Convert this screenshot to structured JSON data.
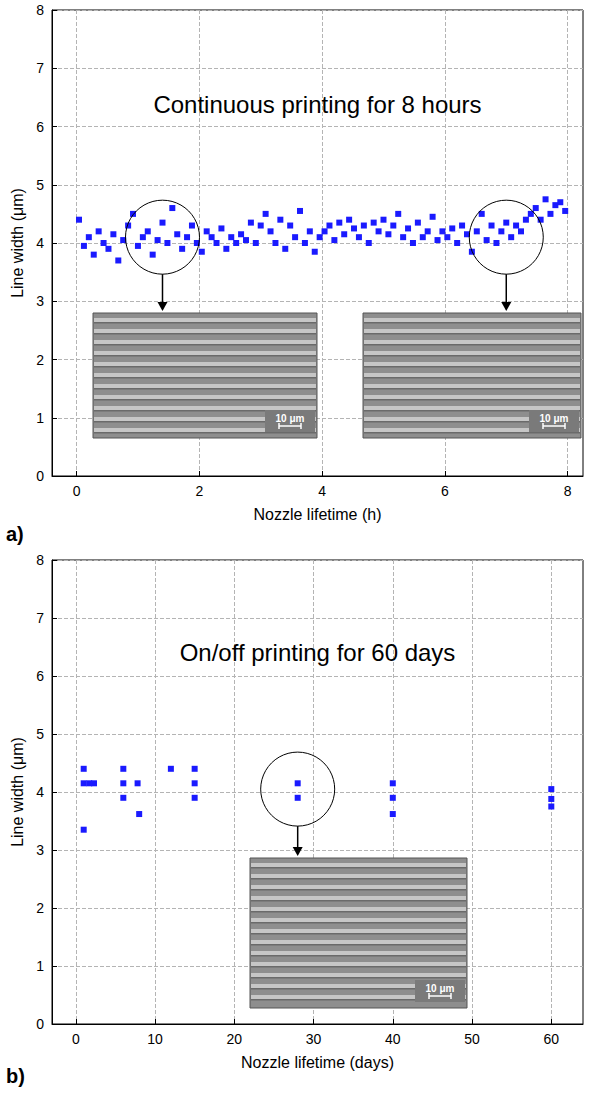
{
  "chart_data": [
    {
      "type": "scatter",
      "panel": "a)",
      "annotation": "Continuous printing for 8 hours",
      "x_label": "Nozzle lifetime (h)",
      "y_label": "Line width (μm)",
      "color": "#1a1aff",
      "marker": "square",
      "grid": true,
      "xlim": [
        -0.4,
        8.25
      ],
      "ylim": [
        0,
        8
      ],
      "xticks": [
        0,
        2,
        4,
        6,
        8
      ],
      "yticks": [
        0,
        1,
        2,
        3,
        4,
        5,
        6,
        7,
        8
      ],
      "x": [
        0.04,
        0.12,
        0.2,
        0.28,
        0.36,
        0.44,
        0.52,
        0.6,
        0.68,
        0.76,
        0.84,
        0.92,
        1,
        1.08,
        1.16,
        1.24,
        1.32,
        1.4,
        1.48,
        1.56,
        1.64,
        1.72,
        1.8,
        1.88,
        1.96,
        2.04,
        2.12,
        2.2,
        2.28,
        2.36,
        2.44,
        2.52,
        2.6,
        2.68,
        2.76,
        2.84,
        2.92,
        3,
        3.08,
        3.16,
        3.24,
        3.32,
        3.4,
        3.48,
        3.56,
        3.64,
        3.72,
        3.8,
        3.88,
        3.96,
        4.04,
        4.12,
        4.2,
        4.28,
        4.36,
        4.44,
        4.52,
        4.6,
        4.68,
        4.76,
        4.84,
        4.92,
        5,
        5.08,
        5.16,
        5.24,
        5.32,
        5.4,
        5.48,
        5.56,
        5.64,
        5.72,
        5.8,
        5.88,
        5.96,
        6.04,
        6.12,
        6.2,
        6.28,
        6.36,
        6.44,
        6.52,
        6.6,
        6.68,
        6.76,
        6.84,
        6.92,
        7,
        7.08,
        7.16,
        7.24,
        7.32,
        7.4,
        7.48,
        7.56,
        7.64,
        7.72,
        7.8,
        7.88,
        7.96
      ],
      "values": [
        4.4,
        3.95,
        4.1,
        3.8,
        4.2,
        4.0,
        3.9,
        4.15,
        3.7,
        4.05,
        4.3,
        4.5,
        3.95,
        4.1,
        4.2,
        3.8,
        4.05,
        4.35,
        4.0,
        4.6,
        4.15,
        3.9,
        4.1,
        4.3,
        4.0,
        3.85,
        4.2,
        4.1,
        4.0,
        4.25,
        3.9,
        4.1,
        4.0,
        4.15,
        4.05,
        4.35,
        4.0,
        4.3,
        4.5,
        4.2,
        4.0,
        4.4,
        3.9,
        4.3,
        4.1,
        4.55,
        4.0,
        4.2,
        3.85,
        4.1,
        4.2,
        4.3,
        4.05,
        4.35,
        4.15,
        4.4,
        4.25,
        4.1,
        4.3,
        4.0,
        4.35,
        4.2,
        4.4,
        4.15,
        4.3,
        4.5,
        4.1,
        4.25,
        4.0,
        4.35,
        4.1,
        4.2,
        4.45,
        4.05,
        4.2,
        4.1,
        4.25,
        4.0,
        4.3,
        4.15,
        3.85,
        4.2,
        4.5,
        4.05,
        4.3,
        4.0,
        4.2,
        4.35,
        4.1,
        4.3,
        4.2,
        4.4,
        4.5,
        4.6,
        4.4,
        4.75,
        4.5,
        4.65,
        4.7,
        4.55
      ],
      "insets": [
        {
          "x": 1.4,
          "y": 4.1,
          "scale_bar": "10 μm"
        },
        {
          "x": 7.0,
          "y": 4.1,
          "scale_bar": "10 μm"
        }
      ]
    },
    {
      "type": "scatter",
      "panel": "b)",
      "annotation": "On/off printing for 60 days",
      "x_label": "Nozzle lifetime (days)",
      "y_label": "Line width (μm)",
      "color": "#1a1aff",
      "marker": "square",
      "grid": true,
      "xlim": [
        -3,
        64
      ],
      "ylim": [
        0,
        8
      ],
      "xticks": [
        0,
        10,
        20,
        30,
        40,
        50,
        60
      ],
      "yticks": [
        0,
        1,
        2,
        3,
        4,
        5,
        6,
        7,
        8
      ],
      "x": [
        1,
        1,
        1,
        1.7,
        2.3,
        6,
        6,
        6,
        7.8,
        8,
        12,
        15,
        15,
        15,
        28,
        28,
        40,
        40,
        40,
        60,
        60,
        60
      ],
      "values": [
        4.4,
        4.15,
        3.35,
        4.15,
        4.15,
        4.4,
        4.15,
        3.9,
        4.15,
        3.62,
        4.4,
        4.4,
        4.15,
        3.9,
        4.15,
        3.9,
        4.15,
        3.9,
        3.62,
        4.05,
        3.88,
        3.75
      ],
      "insets": [
        {
          "x": 28,
          "y": 4.05,
          "scale_bar": "10 μm"
        }
      ]
    }
  ]
}
